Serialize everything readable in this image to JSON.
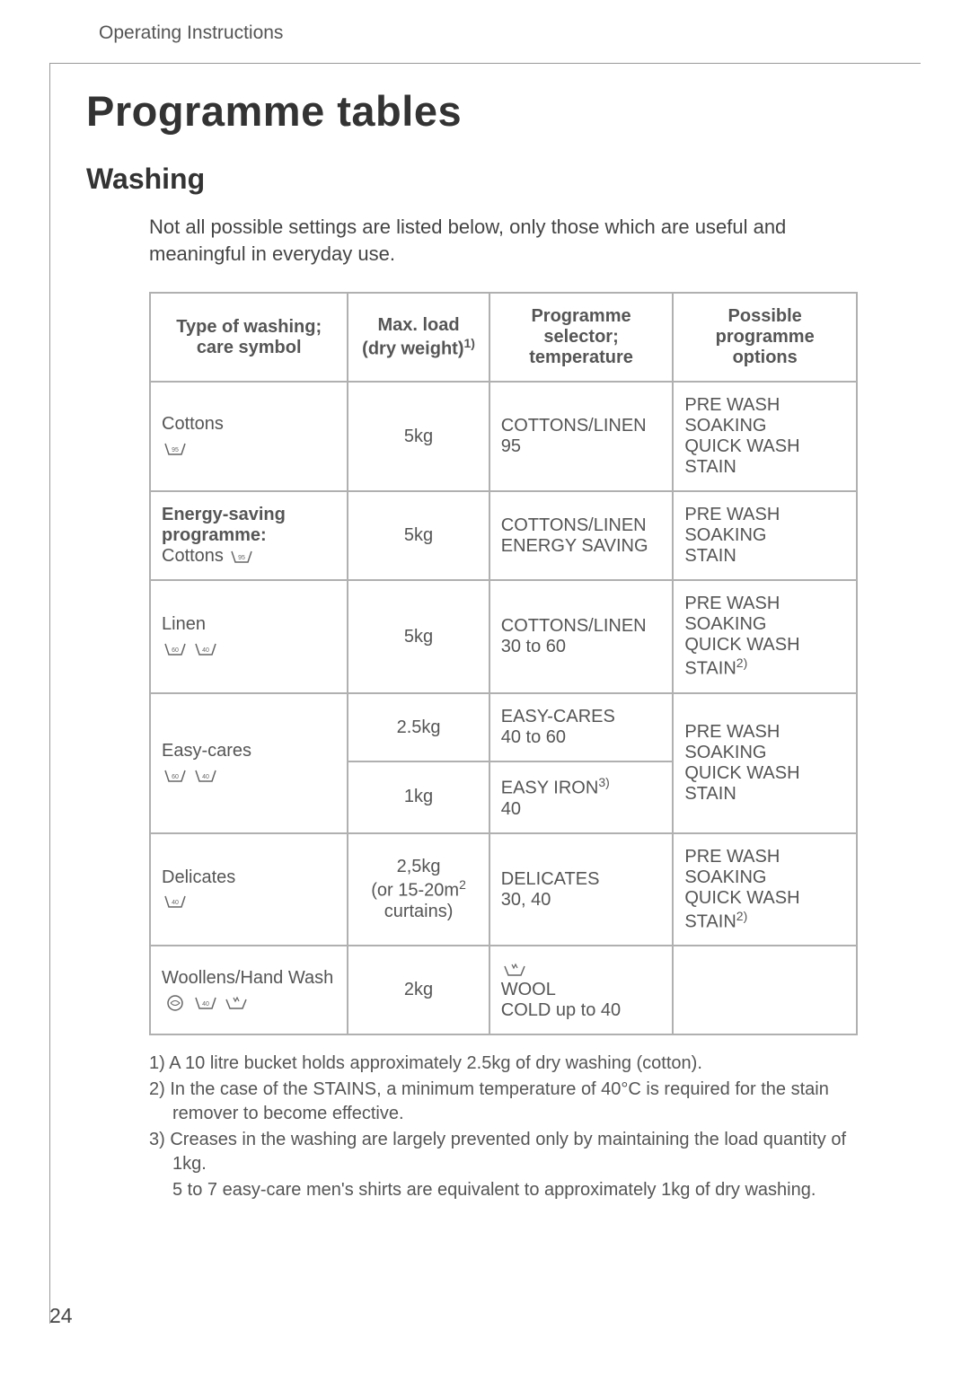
{
  "header_label": "Operating Instructions",
  "main_title": "Programme tables",
  "section_title": "Washing",
  "intro": "Not all possible settings are listed below, only those which are useful and meaningful in everyday use.",
  "table": {
    "columns": [
      "Type of washing; care symbol",
      "Max. load (dry weight)",
      "Programme selector; temperature",
      "Possible programme options"
    ],
    "col_widths": [
      "28%",
      "20%",
      "26%",
      "26%"
    ],
    "header_footnote_col": 1,
    "header_footnote_mark": "1)",
    "rows": [
      {
        "type_label": "Cottons",
        "type_icons": [
          "95"
        ],
        "type_bold": false,
        "max_load": "5kg",
        "selector": "COTTONS/LINEN\n95",
        "options": "PRE WASH\nSOAKING\nQUICK WASH\nSTAIN"
      },
      {
        "type_label": "Energy-saving programme:",
        "type_sub": "Cottons",
        "type_icons_inline": [
          "95"
        ],
        "type_bold": true,
        "max_load": "5kg",
        "selector": "COTTONS/LINEN\nENERGY SAVING",
        "options": "PRE WASH\nSOAKING\nSTAIN"
      },
      {
        "type_label": "Linen",
        "type_icons": [
          "60",
          "40"
        ],
        "type_bold": false,
        "max_load": "5kg",
        "selector": "COTTONS/LINEN\n30 to 60",
        "options": "PRE WASH\nSOAKING\nQUICK WASH",
        "options_last": "STAIN",
        "options_last_mark": "2)"
      },
      {
        "type_label": "Easy-cares",
        "type_icons": [
          "60",
          "40"
        ],
        "type_bold": false,
        "rowspan": 2,
        "max_load": "2.5kg",
        "selector": "EASY-CARES\n40 to 60",
        "options": "PRE WASH\nSOAKING\nQUICK WASH\nSTAIN",
        "options_rowspan": 2
      },
      {
        "max_load": "1kg",
        "selector_main": "EASY IRON",
        "selector_mark": "3)",
        "selector_sub": "40"
      },
      {
        "type_label": "Delicates",
        "type_icons": [
          "40"
        ],
        "type_bold": false,
        "max_load_lines": [
          "2,5kg",
          "(or 15-20m",
          "curtains)"
        ],
        "max_load_sup": "2",
        "selector": "DELICATES\n30, 40",
        "options": "PRE WASH\nSOAKING\nQUICK WASH",
        "options_last": "STAIN",
        "options_last_mark": "2)"
      },
      {
        "type_label": "Woollens/Hand Wash",
        "type_icons": [
          "wool",
          "40",
          "hand"
        ],
        "type_bold": false,
        "max_load": "2kg",
        "selector_icon": "hand",
        "selector": "WOOL\nCOLD up to 40",
        "options": ""
      }
    ]
  },
  "footnotes": [
    "1) A 10 litre bucket holds approximately 2.5kg of dry washing (cotton).",
    "2) In the case of the STAINS, a minimum temperature of 40°C is required for the stain remover to become effective.",
    "3) Creases in the washing are largely prevented only by maintaining the load quantity of 1kg."
  ],
  "footnote_sub": "5 to 7 easy-care men's shirts are equivalent to approximately 1kg of dry washing.",
  "page_number": "24",
  "colors": {
    "text": "#555555",
    "border": "#b0b0b0",
    "bg": "#ffffff"
  }
}
